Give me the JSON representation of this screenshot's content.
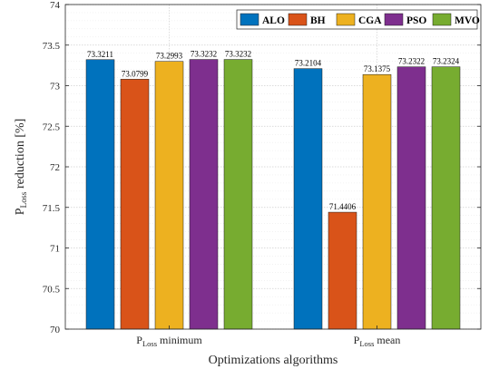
{
  "chart_data": {
    "type": "bar",
    "xlabel": "Optimizations algorithms",
    "ylabel": {
      "main": "P",
      "sub": "Loss",
      "rest": " reduction [%]"
    },
    "ylim": [
      70,
      74
    ],
    "yticks": [
      "70",
      "70.5",
      "71",
      "71.5",
      "72",
      "72.5",
      "73",
      "73.5",
      "74"
    ],
    "ytick_values": [
      70,
      70.5,
      71,
      71.5,
      72,
      72.5,
      73,
      73.5,
      74
    ],
    "grid": true,
    "legend_position": "top-right",
    "categories": [
      {
        "main": "P",
        "sub": "Loss",
        "rest": " minimum"
      },
      {
        "main": "P",
        "sub": "Loss",
        "rest": " mean"
      }
    ],
    "series": [
      {
        "name": "ALO",
        "color": "#0072BD",
        "values": [
          73.3211,
          73.2104
        ],
        "labels": [
          "73.3211",
          "73.2104"
        ]
      },
      {
        "name": "BH",
        "color": "#D95319",
        "values": [
          73.0799,
          71.4406
        ],
        "labels": [
          "73.0799",
          "71.4406"
        ]
      },
      {
        "name": "CGA",
        "color": "#EDB120",
        "values": [
          73.2993,
          73.1375
        ],
        "labels": [
          "73.2993",
          "73.1375"
        ]
      },
      {
        "name": "PSO",
        "color": "#7E2F8E",
        "values": [
          73.3232,
          73.2322
        ],
        "labels": [
          "73.3232",
          "73.2322"
        ]
      },
      {
        "name": "MVO",
        "color": "#77AC30",
        "values": [
          73.3232,
          73.2324
        ],
        "labels": [
          "73.3232",
          "73.2324"
        ]
      }
    ]
  }
}
